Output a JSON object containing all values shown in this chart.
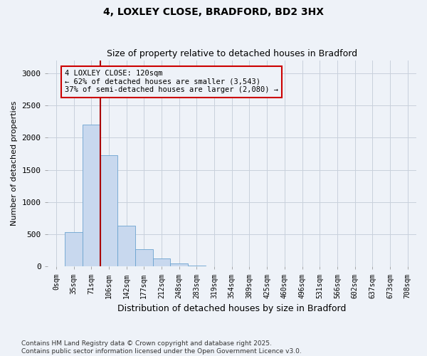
{
  "title": "4, LOXLEY CLOSE, BRADFORD, BD2 3HX",
  "subtitle": "Size of property relative to detached houses in Bradford",
  "xlabel": "Distribution of detached houses by size in Bradford",
  "ylabel": "Number of detached properties",
  "footnote1": "Contains HM Land Registry data © Crown copyright and database right 2025.",
  "footnote2": "Contains public sector information licensed under the Open Government Licence v3.0.",
  "bar_labels": [
    "0sqm",
    "35sqm",
    "71sqm",
    "106sqm",
    "142sqm",
    "177sqm",
    "212sqm",
    "248sqm",
    "283sqm",
    "319sqm",
    "354sqm",
    "389sqm",
    "425sqm",
    "460sqm",
    "496sqm",
    "531sqm",
    "566sqm",
    "602sqm",
    "637sqm",
    "673sqm",
    "708sqm"
  ],
  "bar_values": [
    5,
    530,
    2200,
    1730,
    630,
    270,
    130,
    50,
    20,
    5,
    0,
    0,
    0,
    0,
    0,
    0,
    0,
    0,
    0,
    0,
    0
  ],
  "bar_color": "#c8d8ee",
  "bar_edge_color": "#6ba3d0",
  "background_color": "#eef2f8",
  "vline_x": 3.0,
  "vline_color": "#aa0000",
  "annotation_text": "4 LOXLEY CLOSE: 120sqm\n← 62% of detached houses are smaller (3,543)\n37% of semi-detached houses are larger (2,080) →",
  "annotation_box_color": "#cc0000",
  "ylim": [
    0,
    3200
  ],
  "yticks": [
    0,
    500,
    1000,
    1500,
    2000,
    2500,
    3000
  ],
  "title_fontsize": 10,
  "subtitle_fontsize": 9
}
